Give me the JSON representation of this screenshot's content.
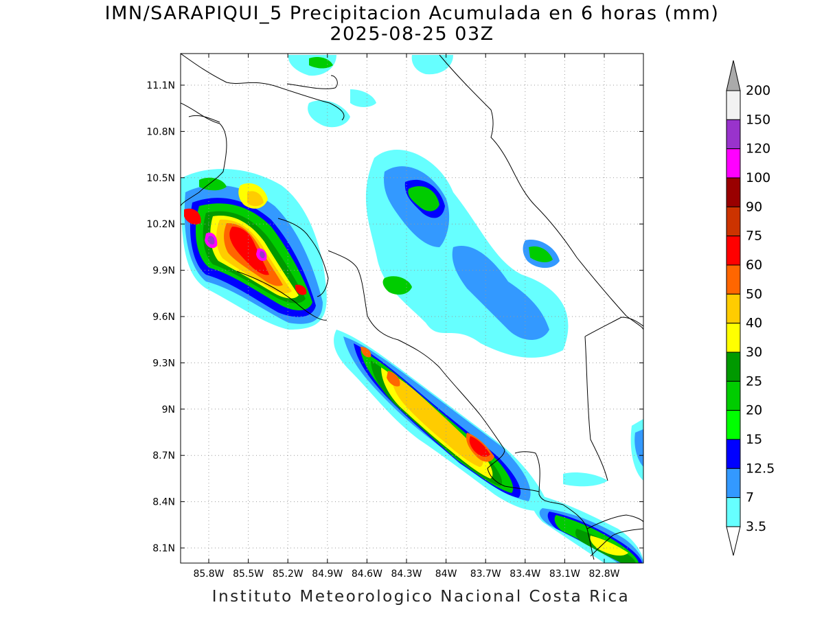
{
  "map": {
    "title_line1": "IMN/SARAPIQUI_5 Precipitacion Acumulada en 6 horas (mm)",
    "title_line2": "2025-08-25 03Z",
    "footer": "Instituto Meteorologico Nacional Costa Rica",
    "lon_ticks": [
      "85.8W",
      "85.5W",
      "85.2W",
      "84.9W",
      "84.6W",
      "84.3W",
      "84W",
      "83.7W",
      "83.4W",
      "83.1W",
      "82.8W"
    ],
    "lat_ticks": [
      "11.1N",
      "10.8N",
      "10.5N",
      "10.2N",
      "9.9N",
      "9.6N",
      "9.3N",
      "9N",
      "8.7N",
      "8.4N",
      "8.1N"
    ]
  },
  "legend": {
    "labels": [
      "200",
      "150",
      "120",
      "100",
      "90",
      "75",
      "60",
      "50",
      "40",
      "30",
      "25",
      "20",
      "15",
      "12.5",
      "7",
      "3.5"
    ],
    "colors": [
      "#f2f2f2",
      "#9933cc",
      "#ff00ff",
      "#990000",
      "#cc3300",
      "#ff0000",
      "#ff6600",
      "#ffcc00",
      "#ffff00",
      "#009900",
      "#00cc00",
      "#00ff00",
      "#0000ff",
      "#3399ff",
      "#66ffff"
    ],
    "over_color": "#aaaaaa",
    "under_color": "#ffffff"
  }
}
